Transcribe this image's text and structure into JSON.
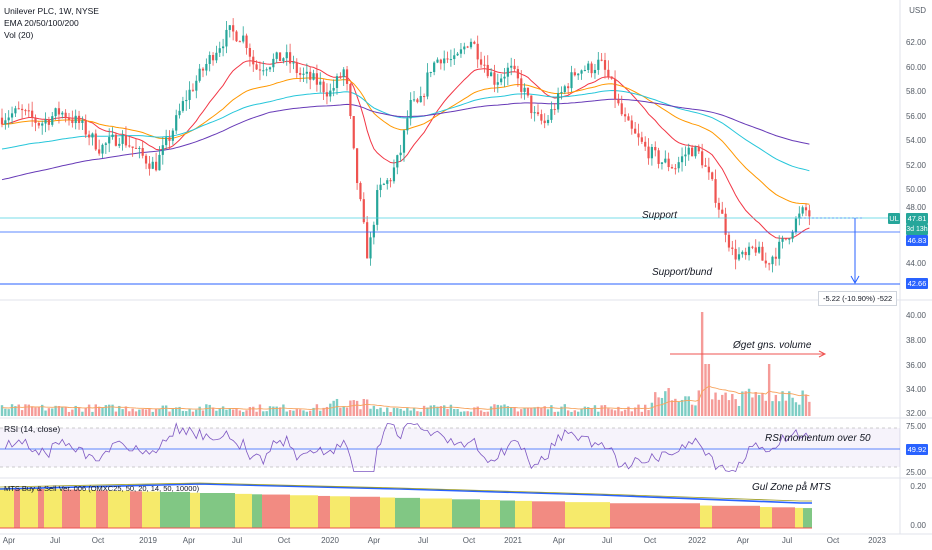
{
  "header": {
    "symbol_line": "Unilever PLC, 1W, NYSE",
    "ema_line": "EMA 20/50/100/200",
    "vol_line": "Vol (20)",
    "currency": "USD"
  },
  "price_axis": {
    "labels": [
      "62.00",
      "60.00",
      "58.00",
      "56.00",
      "54.00",
      "52.00",
      "50.00",
      "48.00",
      "44.00"
    ]
  },
  "price_tags": {
    "last": {
      "ticker": "UL",
      "price": "47.81",
      "countdown": "3d 13h",
      "color": "#26a69a"
    },
    "support": {
      "price": "46.83",
      "color": "#2962ff"
    },
    "bottom": {
      "price": "42.66",
      "color": "#2962ff"
    }
  },
  "measure": {
    "text": "-5.22 (-10.90%) -522"
  },
  "volume_axis": {
    "labels": [
      "40.00",
      "38.00",
      "36.00",
      "34.00",
      "32.00"
    ]
  },
  "rsi": {
    "label": "RSI (14, close)",
    "axis": [
      "75.00",
      "25.00"
    ],
    "value": "49.92",
    "value_color": "#2962ff"
  },
  "mts": {
    "label": "MTS Buy & Sell Ver. 006 (OMXC25, 50, 20, 14, 50, 10000)",
    "axis": [
      "0.20",
      "0.00"
    ]
  },
  "annotations": {
    "support": "Support",
    "support_bund": "Support/bund",
    "volume": "Øget gns. volume",
    "rsi": "RSI momentum over 50",
    "mts": "Gul Zone på MTS"
  },
  "time_axis": {
    "labels": [
      "Apr",
      "Jul",
      "Oct",
      "2019",
      "Apr",
      "Jul",
      "Oct",
      "2020",
      "Apr",
      "Jul",
      "Oct",
      "2021",
      "Apr",
      "Jul",
      "Oct",
      "2022",
      "Apr",
      "Jul",
      "Oct",
      "2023"
    ]
  },
  "colors": {
    "up": "#26a69a",
    "down": "#ef5350",
    "ema20": "#f23645",
    "ema50": "#ff9800",
    "ema100": "#26c6da",
    "ema200": "#673ab7",
    "rsi_line": "#7e57c2",
    "mts_yellow": "#f6ea6b",
    "mts_red": "#f28b82",
    "mts_green": "#81c784",
    "vol_ma": "#f7a35c"
  }
}
